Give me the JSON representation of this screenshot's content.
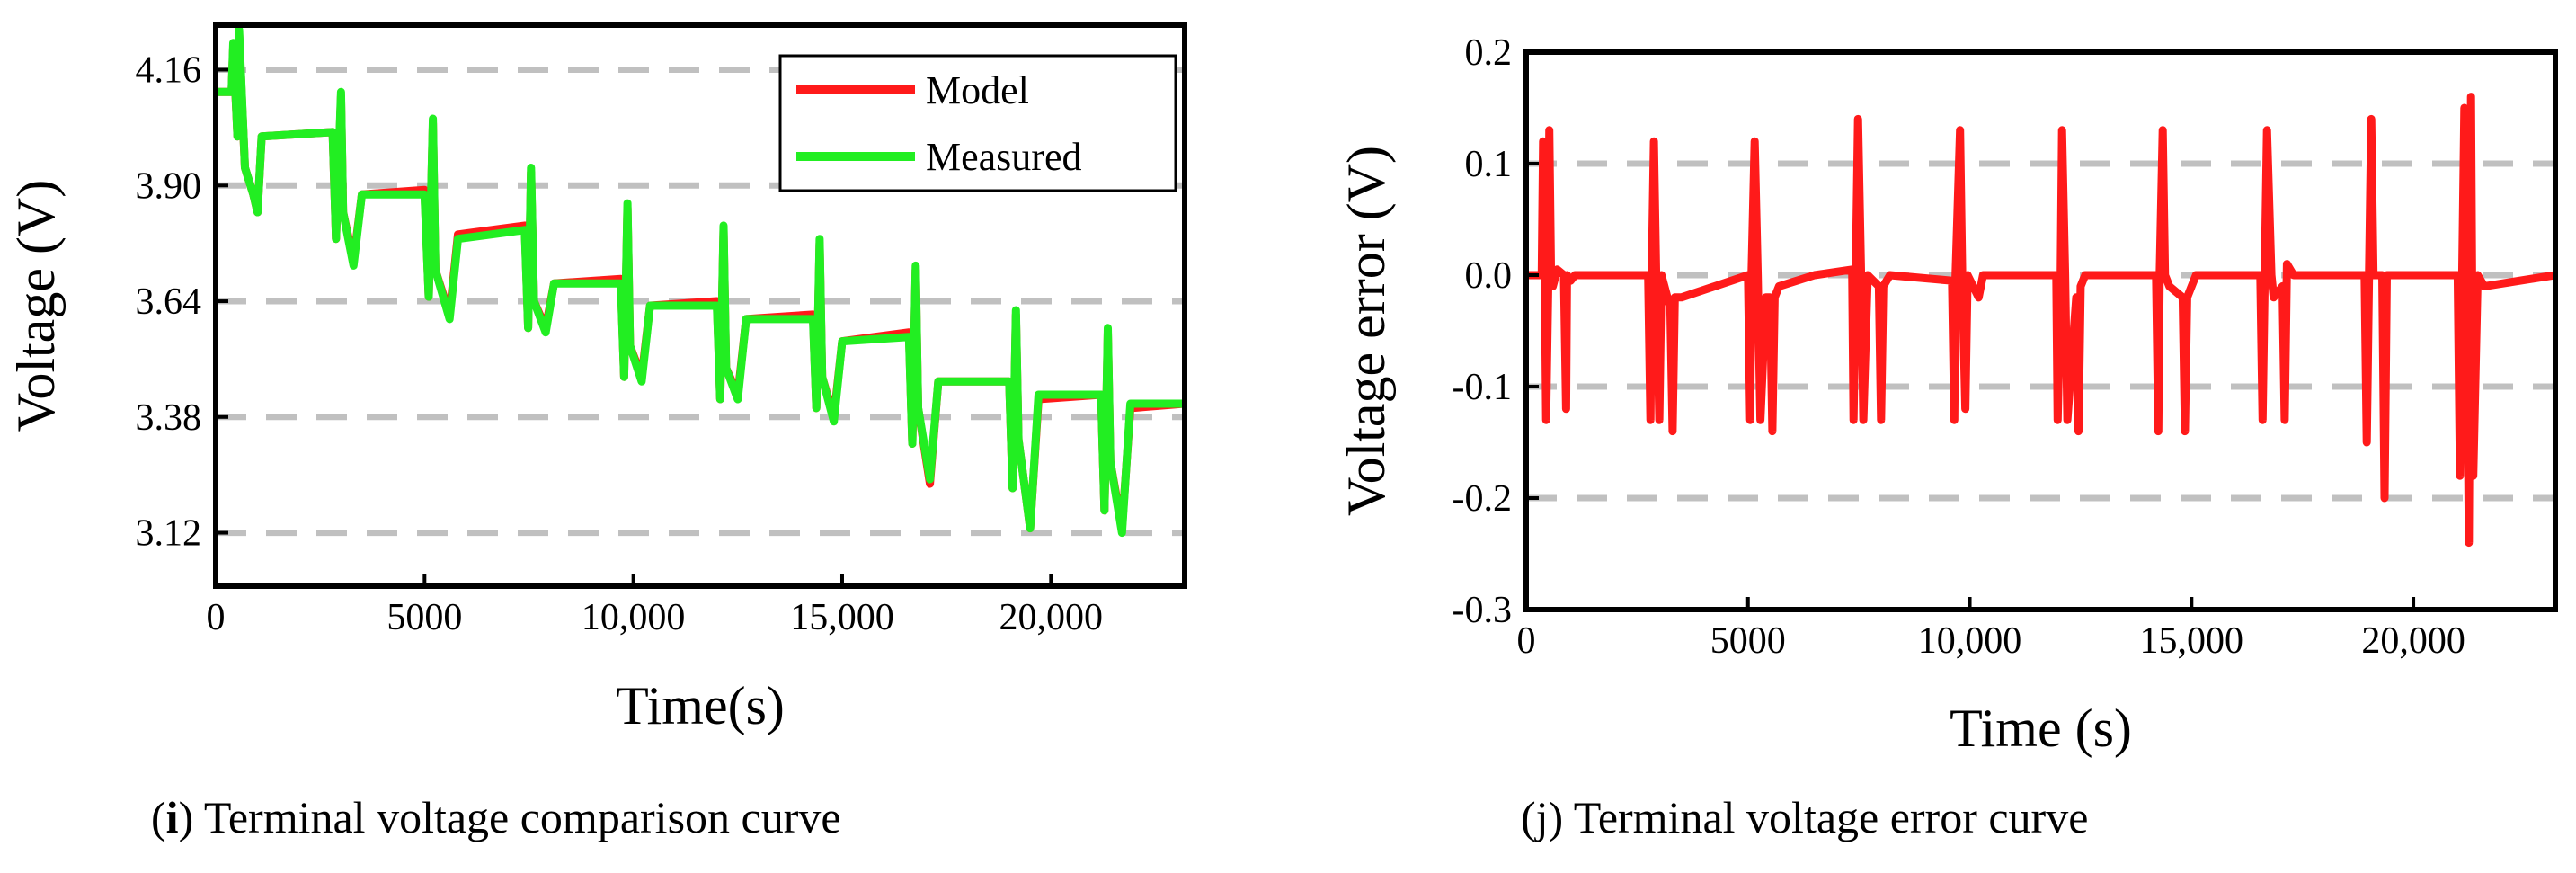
{
  "chart_data": [
    {
      "type": "line",
      "title": "",
      "xlabel": "Time(s)",
      "ylabel": "Voltage (V)",
      "xlim": [
        0,
        23200
      ],
      "ylim": [
        3.0,
        4.26
      ],
      "xticks": [
        0,
        5000,
        10000,
        15000,
        20000
      ],
      "xtick_labels": [
        "0",
        "5000",
        "10,000",
        "15,000",
        "20,000"
      ],
      "yticks": [
        3.12,
        3.38,
        3.64,
        3.9,
        4.16
      ],
      "ytick_labels": [
        "3.12",
        "3.38",
        "3.64",
        "3.90",
        "4.16"
      ],
      "grid": "horizontal dashed",
      "legend": "top-right",
      "series": [
        {
          "name": "Model",
          "color": "#ff1a1a",
          "x": [
            0,
            380,
            420,
            520,
            560,
            700,
            900,
            1000,
            1100,
            2800,
            2880,
            3000,
            3050,
            3300,
            3500,
            5000,
            5100,
            5200,
            5260,
            5600,
            5800,
            7400,
            7480,
            7550,
            7620,
            7900,
            8100,
            9700,
            9780,
            9860,
            9920,
            10200,
            10400,
            12000,
            12080,
            12160,
            12220,
            12500,
            12700,
            14300,
            14380,
            14460,
            14520,
            14800,
            15000,
            16600,
            16680,
            16760,
            16820,
            17100,
            17300,
            19000,
            19080,
            19160,
            19220,
            19500,
            19700,
            21200,
            21280,
            21360,
            21420,
            21700,
            21900,
            23200
          ],
          "y": [
            4.11,
            4.11,
            4.21,
            4.01,
            4.24,
            3.94,
            3.88,
            3.84,
            4.01,
            4.02,
            3.78,
            4.1,
            3.84,
            3.73,
            3.88,
            3.89,
            3.65,
            4.04,
            3.71,
            3.61,
            3.79,
            3.81,
            3.58,
            3.93,
            3.64,
            3.58,
            3.68,
            3.69,
            3.47,
            3.85,
            3.54,
            3.47,
            3.63,
            3.64,
            3.42,
            3.8,
            3.49,
            3.43,
            3.6,
            3.61,
            3.4,
            3.77,
            3.47,
            3.38,
            3.55,
            3.57,
            3.32,
            3.71,
            3.4,
            3.23,
            3.46,
            3.46,
            3.22,
            3.61,
            3.33,
            3.13,
            3.42,
            3.43,
            3.17,
            3.57,
            3.28,
            3.13,
            3.4,
            3.41
          ]
        },
        {
          "name": "Measured",
          "color": "#22ee22",
          "x": [
            0,
            380,
            420,
            520,
            560,
            700,
            900,
            1000,
            1100,
            2800,
            2880,
            3000,
            3050,
            3300,
            3500,
            5000,
            5100,
            5200,
            5260,
            5600,
            5800,
            7400,
            7480,
            7550,
            7620,
            7900,
            8100,
            9700,
            9780,
            9860,
            9920,
            10200,
            10400,
            12000,
            12080,
            12160,
            12220,
            12500,
            12700,
            14300,
            14380,
            14460,
            14520,
            14800,
            15000,
            16600,
            16680,
            16760,
            16820,
            17100,
            17300,
            19000,
            19080,
            19160,
            19220,
            19500,
            19700,
            21200,
            21280,
            21360,
            21420,
            21700,
            21900,
            23200
          ],
          "y": [
            4.11,
            4.11,
            4.22,
            4.01,
            4.25,
            3.94,
            3.88,
            3.84,
            4.01,
            4.02,
            3.78,
            4.11,
            3.84,
            3.72,
            3.88,
            3.88,
            3.65,
            4.05,
            3.71,
            3.6,
            3.78,
            3.8,
            3.58,
            3.94,
            3.64,
            3.57,
            3.68,
            3.68,
            3.47,
            3.86,
            3.54,
            3.46,
            3.63,
            3.63,
            3.42,
            3.81,
            3.49,
            3.42,
            3.6,
            3.6,
            3.4,
            3.78,
            3.47,
            3.37,
            3.55,
            3.56,
            3.32,
            3.72,
            3.4,
            3.24,
            3.46,
            3.46,
            3.22,
            3.62,
            3.33,
            3.13,
            3.43,
            3.43,
            3.17,
            3.58,
            3.28,
            3.12,
            3.41,
            3.41
          ]
        }
      ]
    },
    {
      "type": "line",
      "title": "",
      "xlabel": "Time (s)",
      "ylabel": "Voltage error (V)",
      "xlim": [
        0,
        23200
      ],
      "ylim": [
        -0.3,
        0.2
      ],
      "xticks": [
        0,
        5000,
        10000,
        15000,
        20000
      ],
      "xtick_labels": [
        "0",
        "5000",
        "10,000",
        "15,000",
        "20,000"
      ],
      "yticks": [
        -0.3,
        -0.2,
        -0.1,
        0.0,
        0.1,
        0.2
      ],
      "ytick_labels": [
        "-0.3",
        "-0.2",
        "-0.1",
        "0.0",
        "0.1",
        "0.2"
      ],
      "grid": "horizontal dashed",
      "series": [
        {
          "name": "",
          "color": "#ff1a1a",
          "x": [
            0,
            350,
            380,
            420,
            450,
            500,
            520,
            560,
            600,
            700,
            850,
            900,
            920,
            1000,
            1100,
            2750,
            2800,
            2830,
            2880,
            2930,
            3000,
            3050,
            3250,
            3300,
            3350,
            3500,
            5000,
            5050,
            5080,
            5150,
            5220,
            5280,
            5400,
            5500,
            5550,
            5600,
            5700,
            6500,
            7350,
            7380,
            7430,
            7480,
            7550,
            7600,
            7700,
            7950,
            8000,
            8050,
            8200,
            9600,
            9650,
            9680,
            9780,
            9830,
            9900,
            9950,
            10200,
            10300,
            11950,
            11980,
            12050,
            12080,
            12150,
            12200,
            12400,
            12450,
            12500,
            12600,
            14200,
            14250,
            14280,
            14350,
            14400,
            14500,
            14800,
            14850,
            14900,
            15100,
            16550,
            16600,
            16650,
            16700,
            16800,
            16850,
            17050,
            17100,
            17150,
            17300,
            18900,
            18950,
            19000,
            19050,
            19100,
            19300,
            19350,
            19400,
            19500,
            21000,
            21050,
            21100,
            21150,
            21200,
            21250,
            21300,
            21350,
            21450,
            21600,
            23200
          ],
          "y": [
            0.0,
            0.0,
            0.12,
            0.0,
            -0.13,
            0.0,
            0.13,
            0.0,
            -0.01,
            0.005,
            0.0,
            -0.12,
            0.0,
            -0.005,
            0.0,
            0.0,
            -0.13,
            0.0,
            0.12,
            0.0,
            -0.13,
            0.0,
            -0.03,
            -0.14,
            -0.02,
            -0.02,
            0.0,
            -0.13,
            0.0,
            0.12,
            0.0,
            -0.13,
            -0.02,
            -0.02,
            -0.14,
            -0.02,
            -0.01,
            0.0,
            0.005,
            -0.13,
            0.0,
            0.14,
            0.0,
            -0.13,
            0.0,
            -0.01,
            -0.13,
            -0.01,
            0.0,
            -0.005,
            -0.13,
            0.0,
            0.13,
            0.0,
            -0.12,
            0.0,
            -0.02,
            0.0,
            0.0,
            -0.13,
            0.0,
            0.13,
            0.0,
            -0.13,
            -0.02,
            -0.14,
            -0.01,
            0.0,
            0.0,
            -0.14,
            0.0,
            0.13,
            0.0,
            -0.01,
            -0.02,
            -0.14,
            -0.02,
            0.0,
            0.0,
            -0.13,
            0.0,
            0.13,
            0.0,
            -0.02,
            -0.01,
            -0.13,
            0.01,
            0.0,
            0.0,
            -0.15,
            0.0,
            0.14,
            0.0,
            0.0,
            -0.2,
            0.0,
            0.0,
            0.0,
            -0.18,
            0.0,
            0.15,
            0.0,
            -0.24,
            0.16,
            -0.18,
            0.0,
            -0.01,
            0.0
          ]
        }
      ]
    }
  ],
  "captions": {
    "left_label": "i",
    "left_text": " Terminal voltage comparison curve",
    "right_text": "(j) Terminal voltage error curve"
  }
}
